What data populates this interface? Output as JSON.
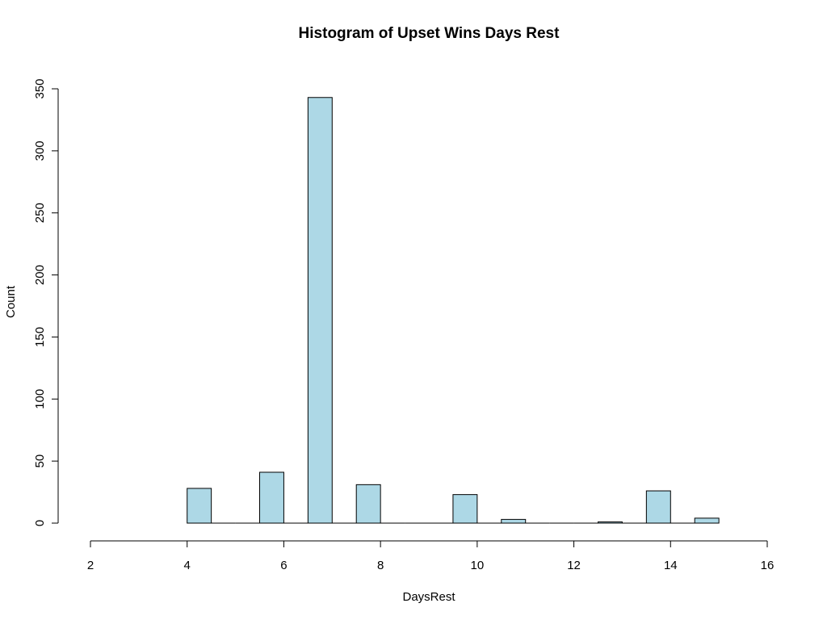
{
  "chart_data": {
    "type": "bar",
    "title": "Histogram of Upset Wins Days Rest",
    "xlabel": "DaysRest",
    "ylabel": "Count",
    "xlim": [
      2,
      16
    ],
    "ylim": [
      0,
      350
    ],
    "xticks": [
      2,
      4,
      6,
      8,
      10,
      12,
      14,
      16
    ],
    "yticks": [
      0,
      50,
      100,
      150,
      200,
      250,
      300,
      350
    ],
    "bin_width": 0.5,
    "bins": [
      {
        "start": 4.0,
        "end": 4.5,
        "count": 28
      },
      {
        "start": 4.5,
        "end": 5.0,
        "count": 0
      },
      {
        "start": 5.0,
        "end": 5.5,
        "count": 0
      },
      {
        "start": 5.5,
        "end": 6.0,
        "count": 41
      },
      {
        "start": 6.0,
        "end": 6.5,
        "count": 0
      },
      {
        "start": 6.5,
        "end": 7.0,
        "count": 343
      },
      {
        "start": 7.0,
        "end": 7.5,
        "count": 0
      },
      {
        "start": 7.5,
        "end": 8.0,
        "count": 31
      },
      {
        "start": 8.0,
        "end": 8.5,
        "count": 0
      },
      {
        "start": 8.5,
        "end": 9.0,
        "count": 0
      },
      {
        "start": 9.0,
        "end": 9.5,
        "count": 0
      },
      {
        "start": 9.5,
        "end": 10.0,
        "count": 23
      },
      {
        "start": 10.0,
        "end": 10.5,
        "count": 0
      },
      {
        "start": 10.5,
        "end": 11.0,
        "count": 3
      },
      {
        "start": 11.0,
        "end": 11.5,
        "count": 0
      },
      {
        "start": 11.5,
        "end": 12.0,
        "count": 0
      },
      {
        "start": 12.0,
        "end": 12.5,
        "count": 0
      },
      {
        "start": 12.5,
        "end": 13.0,
        "count": 1
      },
      {
        "start": 13.0,
        "end": 13.5,
        "count": 0
      },
      {
        "start": 13.5,
        "end": 14.0,
        "count": 26
      },
      {
        "start": 14.0,
        "end": 14.5,
        "count": 0
      },
      {
        "start": 14.5,
        "end": 15.0,
        "count": 4
      }
    ],
    "bar_color": "#ADD8E6",
    "border_color": "#000000",
    "grid": false,
    "legend": "none"
  }
}
